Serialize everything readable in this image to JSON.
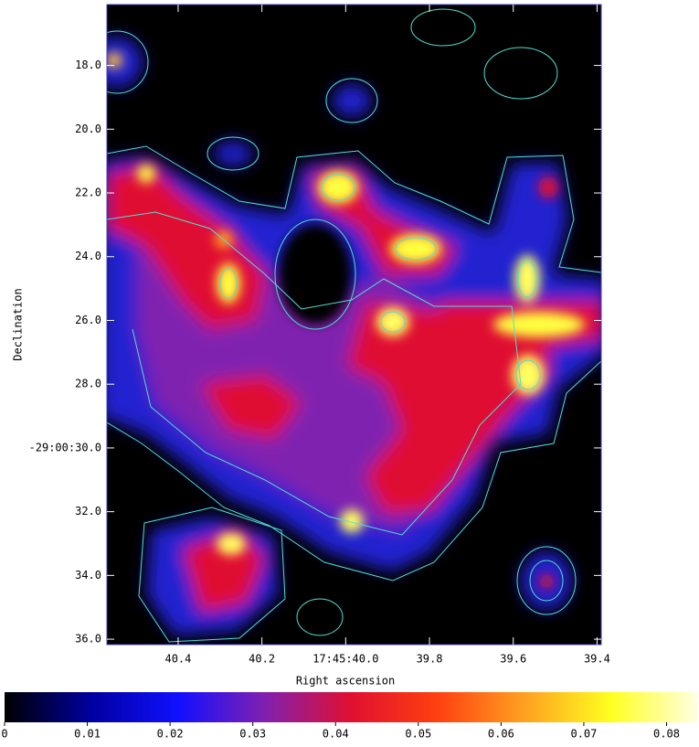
{
  "chart_data": {
    "type": "image",
    "xlabel": "Right ascension",
    "ylabel": "Declination",
    "xlim": [
      40.57,
      39.39
    ],
    "xticks": [
      40.4,
      40.2,
      {
        "value": 40.0,
        "label": "17:45:40.0"
      },
      39.8,
      39.6,
      39.4
    ],
    "ylim": [
      16.09,
      36.17
    ],
    "yticks": [
      {
        "value": 18,
        "label": "18.0"
      },
      {
        "value": 20,
        "label": "20.0"
      },
      {
        "value": 22,
        "label": "22.0"
      },
      {
        "value": 24,
        "label": "24.0"
      },
      {
        "value": 26,
        "label": "26.0"
      },
      {
        "value": 28,
        "label": "28.0"
      },
      {
        "value": 30,
        "label": "-29:00:30.0"
      },
      {
        "value": 32,
        "label": "32.0"
      },
      {
        "value": 34,
        "label": "34.0"
      },
      {
        "value": 36,
        "label": "36.0"
      }
    ],
    "colorbar": {
      "lim": [
        0,
        0.0837
      ],
      "ticks": [
        0,
        0.01,
        0.02,
        0.03,
        0.04,
        0.05,
        0.06,
        0.07,
        0.08
      ],
      "colors": [
        "#000000",
        "#0000a0",
        "#1010ff",
        "#8020b0",
        "#e01030",
        "#ff4010",
        "#ffa020",
        "#ffff20",
        "#ffffe0"
      ]
    }
  }
}
